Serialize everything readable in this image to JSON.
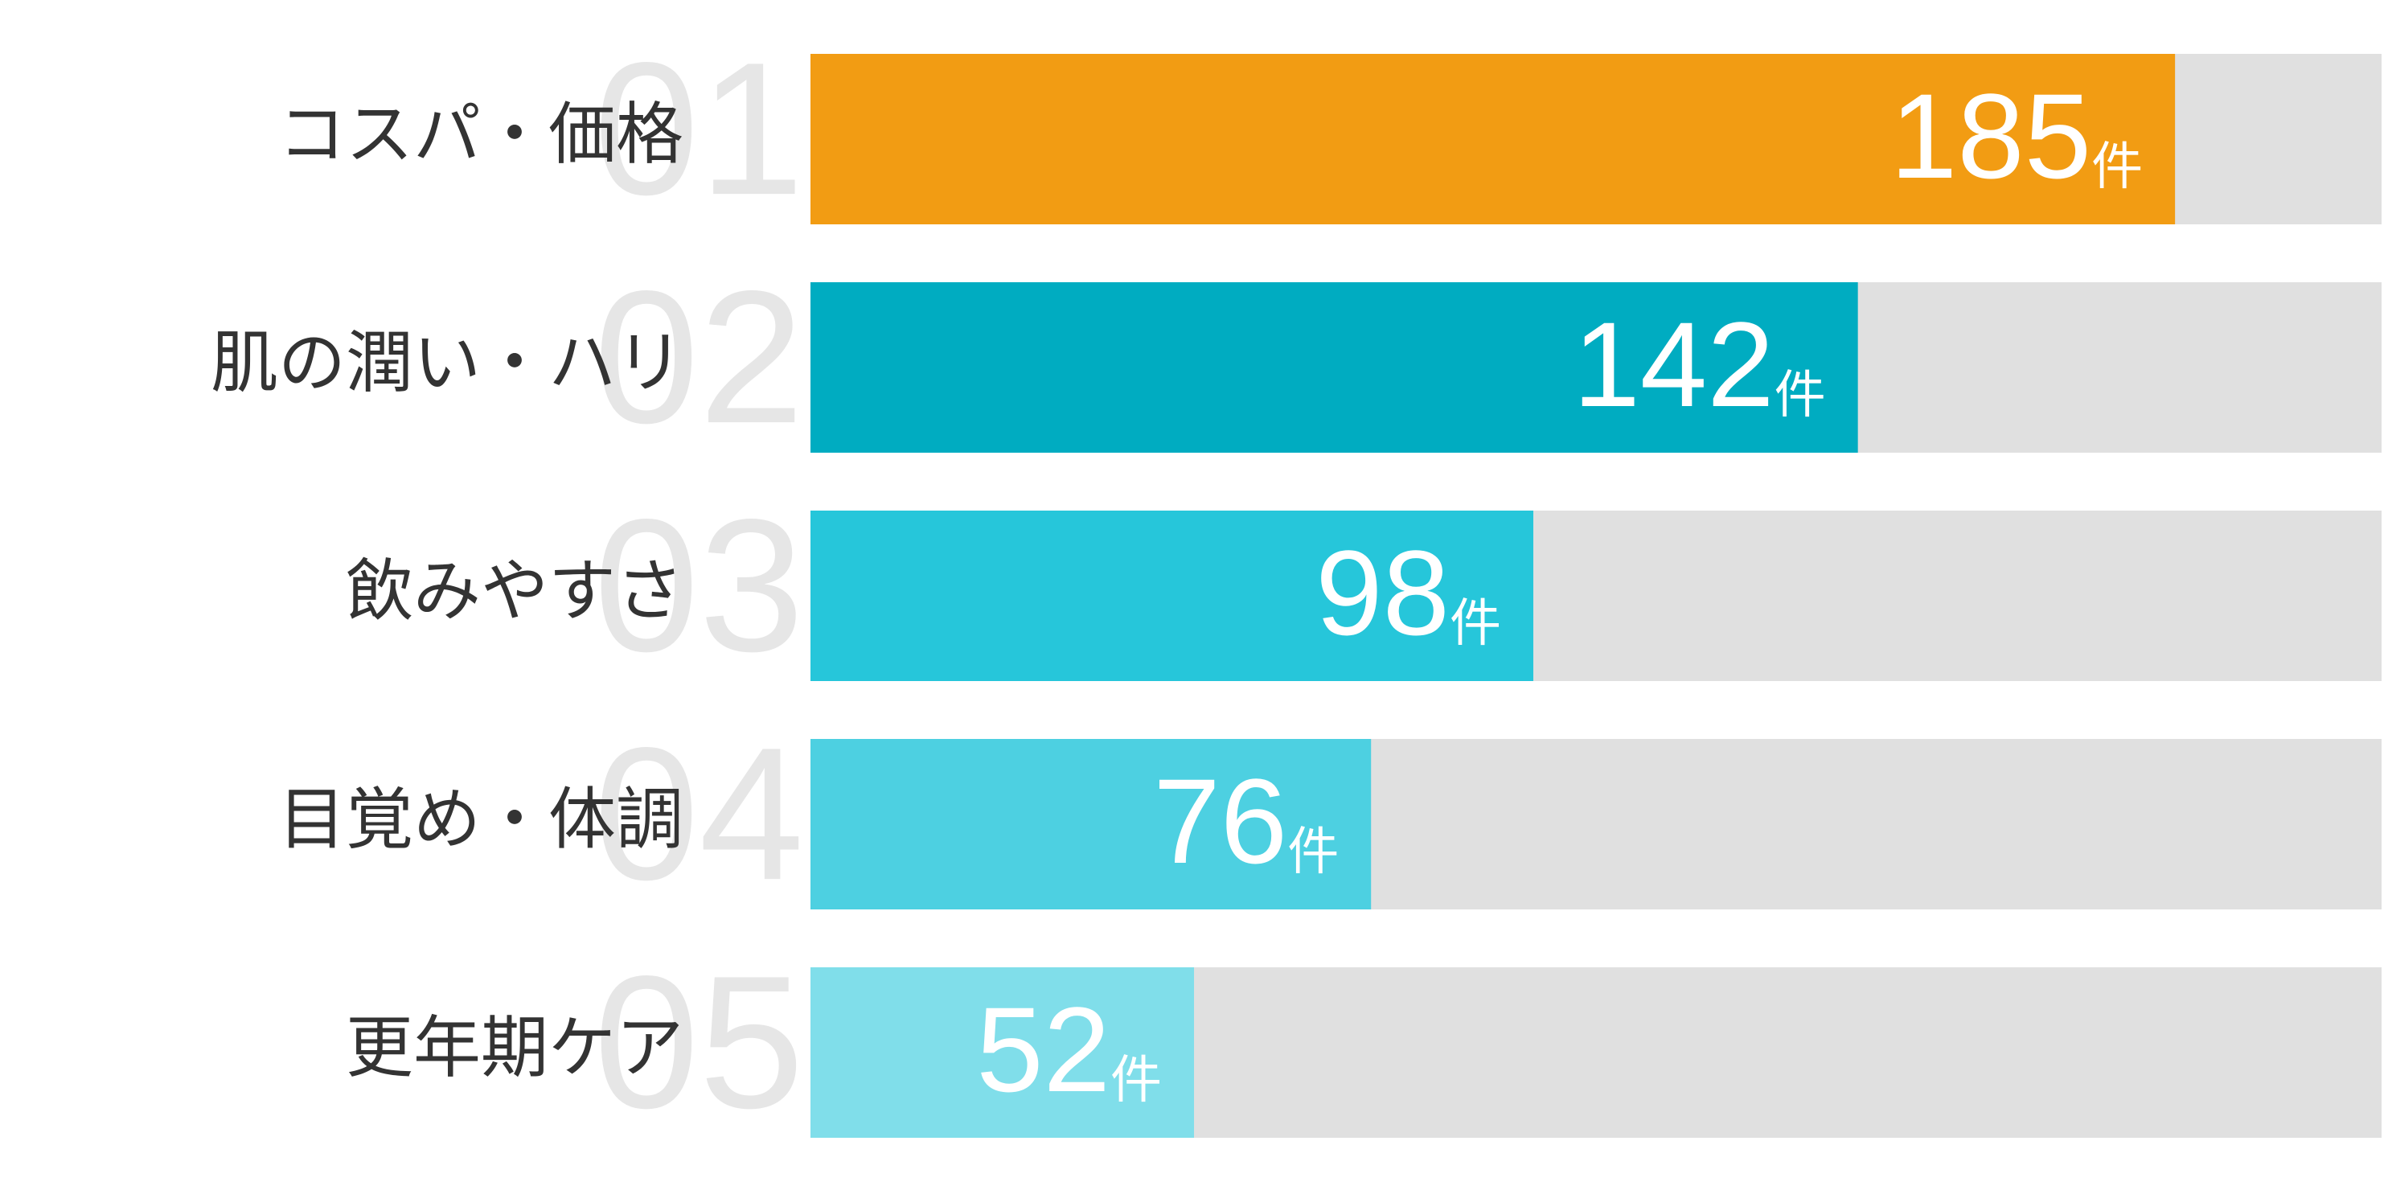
{
  "chart_data": {
    "type": "hbar",
    "categories": [
      "コスパ・価格",
      "肌の潤い・ハリ",
      "飲みやすさ",
      "目覚め・体調",
      "更年期ケア"
    ],
    "ranks": [
      "01",
      "02",
      "03",
      "04",
      "05"
    ],
    "values": [
      185,
      142,
      98,
      76,
      52
    ],
    "unit": "件",
    "colors": [
      "#f29c13",
      "#00acc1",
      "#26c6da",
      "#4dd0e1",
      "#80deea"
    ],
    "track_color": "#e0e0e0",
    "xlim": [
      0,
      213
    ]
  }
}
